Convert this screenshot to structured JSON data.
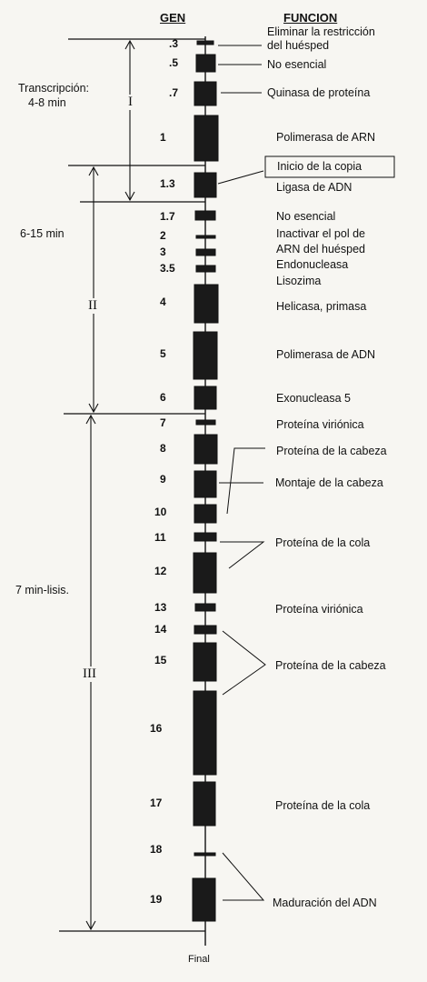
{
  "headers": {
    "gene": "GEN",
    "function": "FUNCION"
  },
  "genes": [
    ".3",
    ".5",
    ".7",
    "1",
    "1.3",
    "1.7",
    "2",
    "3",
    "3.5",
    "4",
    "5",
    "6",
    "7",
    "8",
    "9",
    "10",
    "11",
    "12",
    "13",
    "14",
    "15",
    "16",
    "17",
    "18",
    "19"
  ],
  "functions": {
    "f1": "Eliminar la restricción",
    "f1b": "del huésped",
    "f2": "No esencial",
    "f3": "Quinasa de proteína",
    "f4": "Polimerasa de ARN",
    "f5": "Inicio de la copia",
    "f6": "Ligasa de ADN",
    "f7": "No esencial",
    "f8": "Inactivar el pol de",
    "f8b": "ARN del huésped",
    "f9": "Endonucleasa",
    "f10": "Lisozima",
    "f11": "Helicasa, primasa",
    "f12": "Polimerasa de ADN",
    "f13": "Exonucleasa 5",
    "f14": "Proteína viriónica",
    "f15": "Proteína de la cabeza",
    "f16": "Montaje de la cabeza",
    "f17": "Proteína de la cola",
    "f18": "Proteína viriónica",
    "f19": "Proteína de la cabeza",
    "f20": "Proteína de la cola",
    "f21": "Maduración del ADN"
  },
  "phases": {
    "transcription_label": "Transcripción:",
    "transcription_time": "4-8 min",
    "time_II": "6-15 min",
    "time_III": "7 min-lisis.",
    "roman_I": "I",
    "roman_II": "II",
    "roman_III": "III"
  },
  "final_label": "Final"
}
